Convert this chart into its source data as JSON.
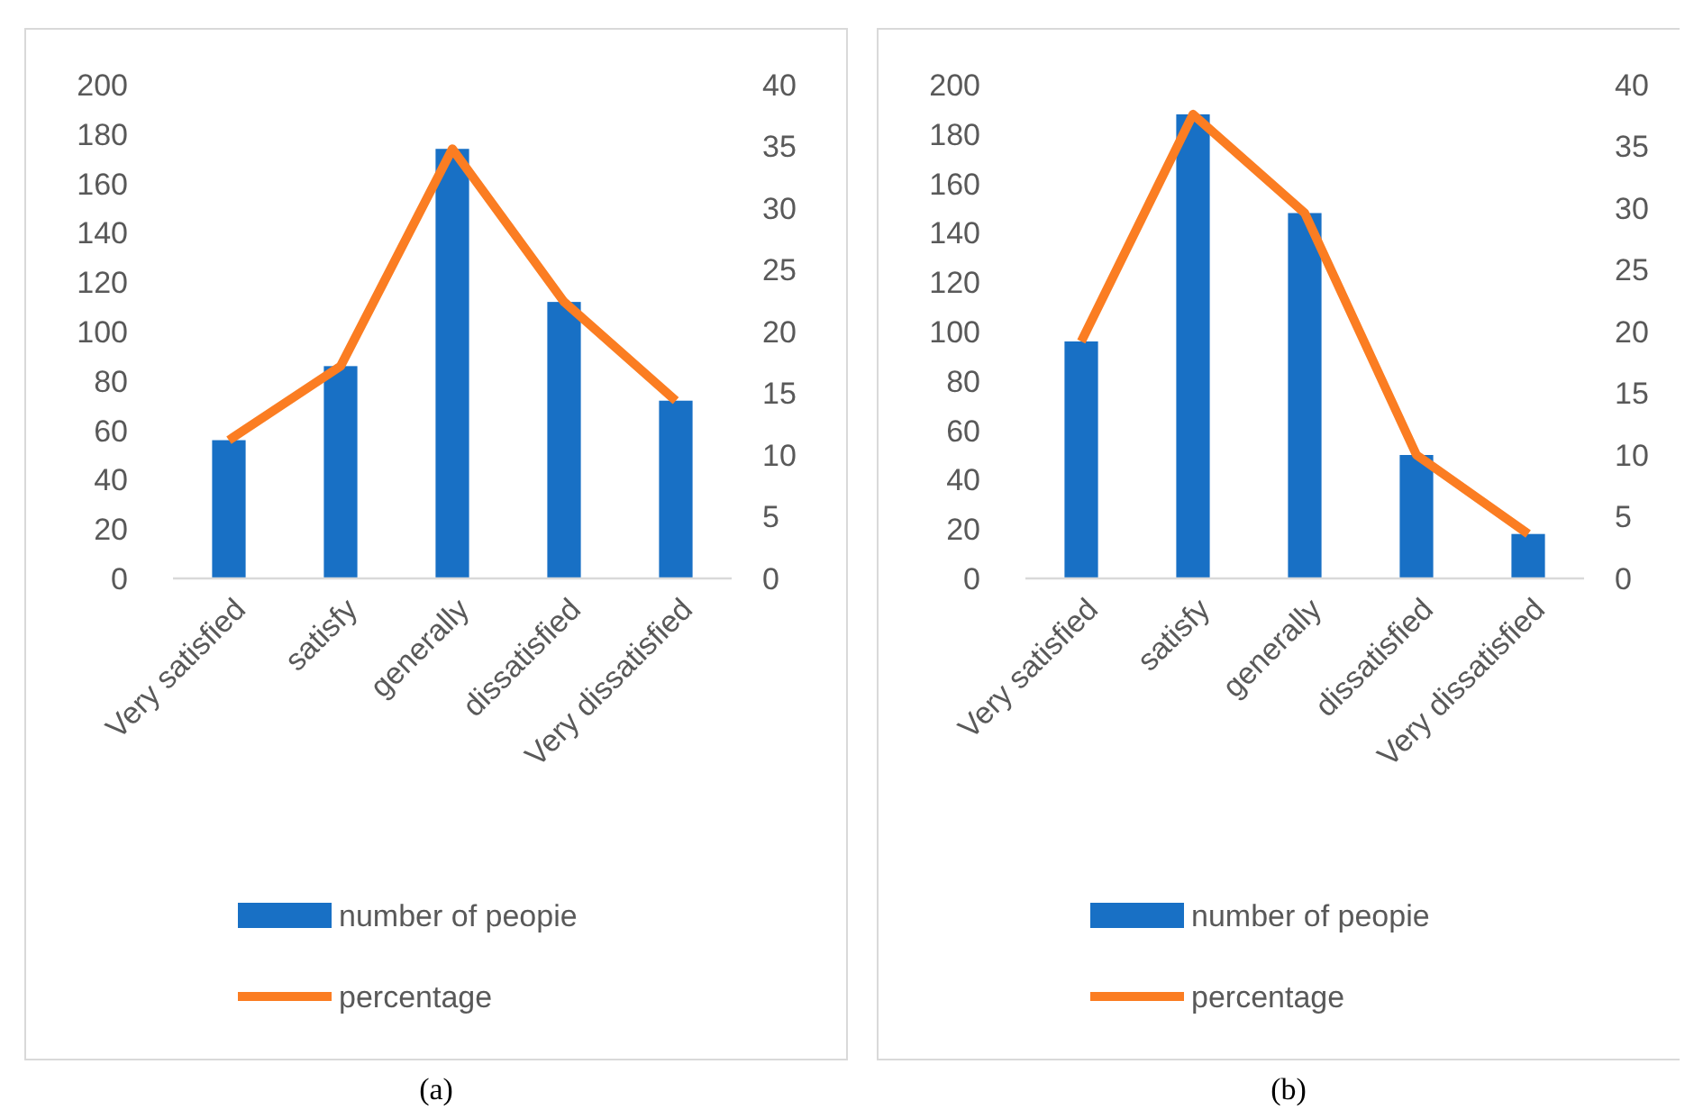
{
  "chart_data": [
    {
      "type": "bar",
      "categories": [
        "Very satisfied",
        "satisfy",
        "generally",
        "dissatisfied",
        "Very dissatisfied"
      ],
      "series": [
        {
          "name": "number of peopie",
          "color": "#1870c5",
          "values": [
            56,
            86,
            174,
            112,
            72
          ]
        },
        {
          "name": "percentage",
          "type": "line",
          "axis": "y2",
          "color": "#fb7d22",
          "values": [
            11.2,
            17.2,
            34.8,
            22.4,
            14.4
          ]
        }
      ],
      "ylim": [
        0,
        200
      ],
      "yticks": [
        0,
        20,
        40,
        60,
        80,
        100,
        120,
        140,
        160,
        180,
        200
      ],
      "y2lim": [
        0,
        40
      ],
      "y2ticks": [
        0,
        5,
        10,
        15,
        20,
        25,
        30,
        35,
        40
      ],
      "grid": false,
      "legend": "bottom",
      "marker": "none",
      "line_style": "solid",
      "annotations": [
        "(a)"
      ]
    },
    {
      "type": "bar",
      "categories": [
        "Very satisfied",
        "satisfy",
        "generally",
        "dissatisfied",
        "Very dissatisfied"
      ],
      "series": [
        {
          "name": "number of peopie",
          "color": "#1870c5",
          "values": [
            96,
            188,
            148,
            50,
            18
          ]
        },
        {
          "name": "percentage",
          "type": "line",
          "axis": "y2",
          "color": "#fb7d22",
          "values": [
            19.2,
            37.6,
            29.6,
            10,
            3.6
          ]
        }
      ],
      "ylim": [
        0,
        200
      ],
      "yticks": [
        0,
        20,
        40,
        60,
        80,
        100,
        120,
        140,
        160,
        180,
        200
      ],
      "y2lim": [
        0,
        40
      ],
      "y2ticks": [
        0,
        5,
        10,
        15,
        20,
        25,
        30,
        35,
        40
      ],
      "grid": false,
      "legend": "bottom",
      "marker": "none",
      "line_style": "solid",
      "annotations": [
        "(b)"
      ]
    }
  ]
}
